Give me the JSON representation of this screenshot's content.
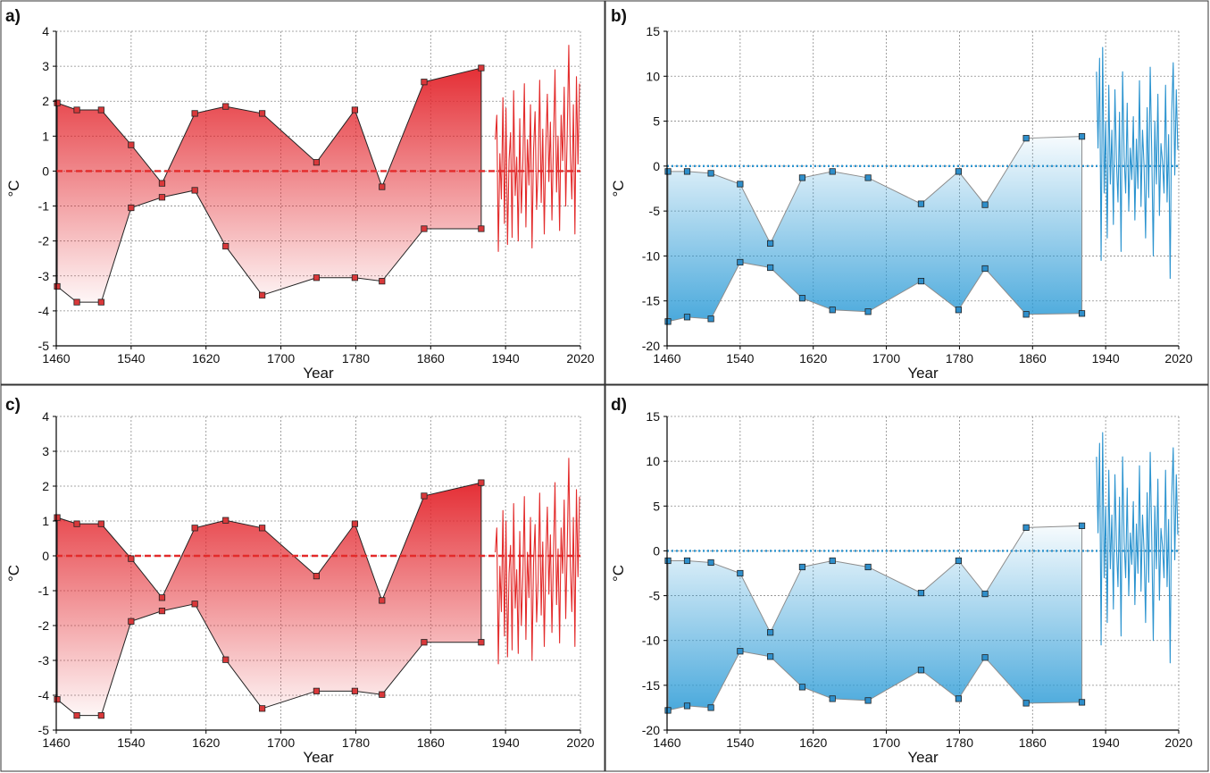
{
  "colors": {
    "red": "#e32b2b",
    "blue": "#2a93cf",
    "red_marker": "#d9383a",
    "blue_marker": "#2f8fcb"
  },
  "chart_data": [
    {
      "panel": "a)",
      "type": "area",
      "xlabel": "Year",
      "ylabel": "°C",
      "xlim": [
        1460,
        2020
      ],
      "ylim": [
        -5,
        4
      ],
      "xticks": [
        "1460",
        "1540",
        "1620",
        "1700",
        "1780",
        "1860",
        "1940",
        "2020"
      ],
      "yticks": [
        "-5",
        "-4",
        "-3",
        "-2",
        "-1",
        "0",
        "1",
        "2",
        "3",
        "4"
      ],
      "grid": true,
      "color": "red",
      "reference_line": {
        "y": 0,
        "style": "dashed"
      },
      "upper": {
        "x": [
          1461,
          1482,
          1508,
          1540,
          1573,
          1608,
          1641,
          1680,
          1738,
          1779,
          1808,
          1853,
          1914
        ],
        "y": [
          1.95,
          1.75,
          1.75,
          0.75,
          -0.35,
          1.65,
          1.85,
          1.65,
          0.25,
          1.75,
          -0.45,
          2.55,
          2.95
        ]
      },
      "lower": {
        "x": [
          1461,
          1482,
          1508,
          1540,
          1573,
          1608,
          1641,
          1680,
          1738,
          1779,
          1808,
          1853,
          1914
        ],
        "y": [
          -3.3,
          -3.75,
          -3.75,
          -1.05,
          -0.75,
          -0.55,
          -2.15,
          -3.55,
          -3.05,
          -3.05,
          -3.15,
          -1.65,
          -1.65
        ]
      },
      "instrumental": {
        "x_start": 1929,
        "x_end": 2019,
        "y": [
          0.9,
          1.6,
          -2.3,
          0.5,
          -0.8,
          2.1,
          -1.5,
          1.8,
          -2.1,
          0.3,
          1.1,
          -1.9,
          2.3,
          -0.7,
          0.4,
          -2.0,
          1.5,
          -1.2,
          0.2,
          2.5,
          -1.6,
          0.9,
          -0.4,
          1.9,
          -2.2,
          0.6,
          1.7,
          -1.1,
          0.1,
          2.6,
          -0.9,
          1.2,
          -1.8,
          0.7,
          2.2,
          -0.3,
          1.4,
          -1.4,
          0.8,
          2.9,
          -0.6,
          1.0,
          -1.7,
          1.6,
          0.3,
          2.4,
          -1.0,
          1.1,
          3.6,
          0.5,
          -0.8,
          1.9,
          -1.8,
          2.7,
          0.2,
          2.5
        ]
      }
    },
    {
      "panel": "b)",
      "type": "area",
      "xlabel": "Year",
      "ylabel": "°C",
      "xlim": [
        1460,
        2020
      ],
      "ylim": [
        -20,
        15
      ],
      "xticks": [
        "1460",
        "1540",
        "1620",
        "1700",
        "1780",
        "1860",
        "1940",
        "2020"
      ],
      "yticks": [
        "-20",
        "-15",
        "-10",
        "-5",
        "0",
        "5",
        "10",
        "15"
      ],
      "grid": true,
      "color": "blue",
      "reference_line": {
        "y": 0,
        "style": "dotted"
      },
      "upper": {
        "x": [
          1461,
          1482,
          1508,
          1540,
          1573,
          1608,
          1641,
          1680,
          1738,
          1779,
          1808,
          1853,
          1914
        ],
        "y": [
          -0.6,
          -0.6,
          -0.8,
          -2.0,
          -8.6,
          -1.3,
          -0.6,
          -1.3,
          -4.2,
          -0.6,
          -4.3,
          3.1,
          3.3
        ]
      },
      "lower": {
        "x": [
          1461,
          1482,
          1508,
          1540,
          1573,
          1608,
          1641,
          1680,
          1738,
          1779,
          1808,
          1853,
          1914
        ],
        "y": [
          -17.3,
          -16.8,
          -17.0,
          -10.7,
          -11.3,
          -14.7,
          -16.0,
          -16.2,
          -12.8,
          -16.0,
          -11.4,
          -16.5,
          -16.4
        ]
      },
      "instrumental": {
        "x_start": 1930,
        "x_end": 2019,
        "y": [
          10.5,
          2.0,
          12.0,
          -10.5,
          13.2,
          -3.0,
          5.0,
          -8.0,
          9.0,
          -2.0,
          4.0,
          -6.5,
          8.5,
          0.5,
          -4.0,
          6.0,
          -9.5,
          10.5,
          1.0,
          -3.0,
          7.0,
          -5.0,
          2.0,
          -1.5,
          5.5,
          -6.0,
          3.0,
          -2.5,
          9.5,
          -4.5,
          4.0,
          0.0,
          -8.0,
          6.5,
          -3.5,
          11.0,
          1.5,
          -10.0,
          5.0,
          -2.0,
          8.0,
          -5.5,
          2.5,
          0.5,
          -3.0,
          9.0,
          -4.0,
          3.5,
          -12.5,
          6.0,
          11.5,
          -1.0,
          8.5,
          1.8
        ]
      }
    },
    {
      "panel": "c)",
      "type": "area",
      "xlabel": "Year",
      "ylabel": "°C",
      "xlim": [
        1460,
        2020
      ],
      "ylim": [
        -5,
        4
      ],
      "xticks": [
        "1460",
        "1540",
        "1620",
        "1700",
        "1780",
        "1860",
        "1940",
        "2020"
      ],
      "yticks": [
        "-5",
        "-4",
        "-3",
        "-2",
        "-1",
        "0",
        "1",
        "2",
        "3",
        "4"
      ],
      "grid": true,
      "color": "red",
      "reference_line": {
        "y": 0,
        "style": "dashed"
      },
      "upper": {
        "x": [
          1461,
          1482,
          1508,
          1540,
          1573,
          1608,
          1641,
          1680,
          1738,
          1779,
          1808,
          1853,
          1914
        ],
        "y": [
          1.1,
          0.92,
          0.92,
          -0.08,
          -1.2,
          0.8,
          1.02,
          0.8,
          -0.58,
          0.92,
          -1.28,
          1.72,
          2.1
        ]
      },
      "lower": {
        "x": [
          1461,
          1482,
          1508,
          1540,
          1573,
          1608,
          1641,
          1680,
          1738,
          1779,
          1808,
          1853,
          1914
        ],
        "y": [
          -4.12,
          -4.58,
          -4.58,
          -1.88,
          -1.58,
          -1.38,
          -2.98,
          -4.38,
          -3.88,
          -3.88,
          -3.98,
          -2.48,
          -2.48
        ]
      },
      "instrumental": {
        "x_start": 1929,
        "x_end": 2019,
        "y": [
          0.1,
          0.8,
          -3.1,
          -0.3,
          -1.6,
          1.3,
          -2.3,
          1.0,
          -2.9,
          -0.5,
          0.3,
          -2.7,
          1.5,
          -1.5,
          -0.4,
          -2.8,
          0.7,
          -2.0,
          -0.6,
          1.7,
          -2.4,
          0.1,
          -1.2,
          1.1,
          -3.0,
          -0.2,
          0.9,
          -1.9,
          -0.7,
          1.8,
          -1.7,
          0.4,
          -2.6,
          -0.1,
          1.4,
          -1.1,
          0.6,
          -2.2,
          0.0,
          2.1,
          -1.4,
          0.2,
          -2.5,
          0.8,
          -0.5,
          1.6,
          -1.8,
          0.3,
          2.8,
          -0.3,
          -1.6,
          1.1,
          -2.6,
          1.9,
          -0.6,
          1.7
        ]
      }
    },
    {
      "panel": "d)",
      "type": "area",
      "xlabel": "Year",
      "ylabel": "°C",
      "xlim": [
        1460,
        2020
      ],
      "ylim": [
        -20,
        15
      ],
      "xticks": [
        "1460",
        "1540",
        "1620",
        "1700",
        "1780",
        "1860",
        "1940",
        "2020"
      ],
      "yticks": [
        "-20",
        "-15",
        "-10",
        "-5",
        "0",
        "5",
        "10",
        "15"
      ],
      "grid": true,
      "color": "blue",
      "reference_line": {
        "y": 0,
        "style": "dotted"
      },
      "upper": {
        "x": [
          1461,
          1482,
          1508,
          1540,
          1573,
          1608,
          1641,
          1680,
          1738,
          1779,
          1808,
          1853,
          1914
        ],
        "y": [
          -1.1,
          -1.1,
          -1.3,
          -2.5,
          -9.1,
          -1.8,
          -1.1,
          -1.8,
          -4.7,
          -1.1,
          -4.8,
          2.6,
          2.8
        ]
      },
      "lower": {
        "x": [
          1461,
          1482,
          1508,
          1540,
          1573,
          1608,
          1641,
          1680,
          1738,
          1779,
          1808,
          1853,
          1914
        ],
        "y": [
          -17.8,
          -17.3,
          -17.5,
          -11.2,
          -11.8,
          -15.2,
          -16.5,
          -16.7,
          -13.3,
          -16.5,
          -11.9,
          -17.0,
          -16.9
        ]
      },
      "instrumental": {
        "x_start": 1930,
        "x_end": 2019,
        "y": [
          10.5,
          2.0,
          12.0,
          -10.5,
          13.2,
          -3.0,
          5.0,
          -8.0,
          9.0,
          -2.0,
          4.0,
          -6.5,
          8.5,
          0.5,
          -4.0,
          6.0,
          -9.5,
          10.5,
          1.0,
          -3.0,
          7.0,
          -5.0,
          2.0,
          -1.5,
          5.5,
          -6.0,
          3.0,
          -2.5,
          9.5,
          -4.5,
          4.0,
          0.0,
          -8.0,
          6.5,
          -3.5,
          11.0,
          1.5,
          -10.0,
          5.0,
          -2.0,
          8.0,
          -5.5,
          2.5,
          0.5,
          -3.0,
          9.0,
          -4.0,
          3.5,
          -12.5,
          6.0,
          11.5,
          -1.0,
          8.5,
          1.8
        ]
      }
    }
  ]
}
